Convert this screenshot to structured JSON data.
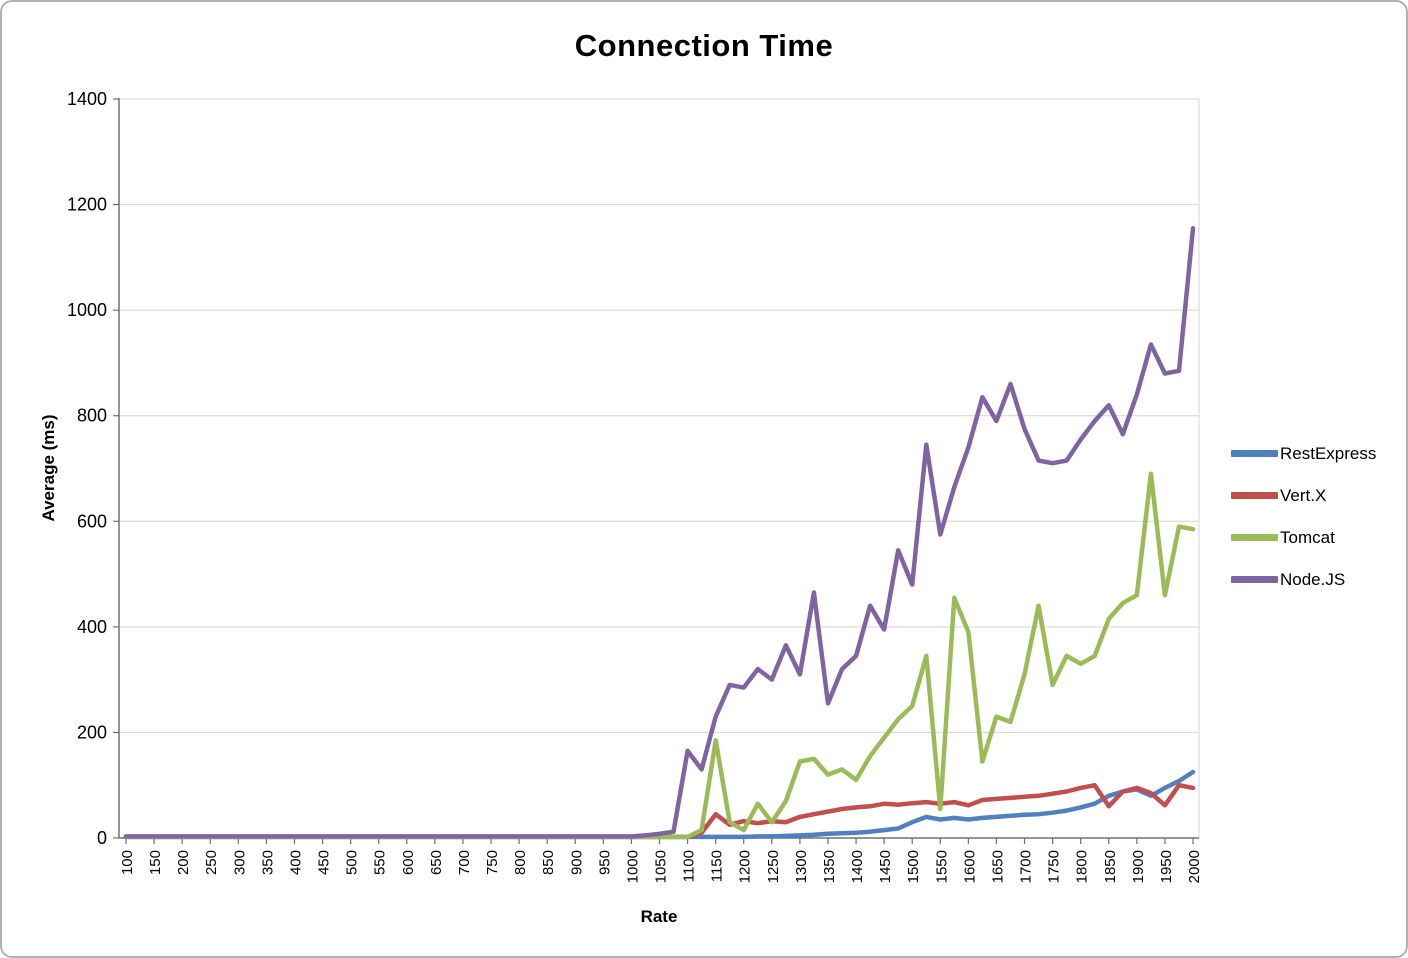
{
  "chart_data": {
    "type": "line",
    "title": "Connection Time",
    "xlabel": "Rate",
    "ylabel": "Average (ms)",
    "x_start": 100,
    "x_step": 25,
    "x_end": 2000,
    "x_tick_step": 50,
    "x_tick_labels": [
      "100",
      "150",
      "200",
      "250",
      "300",
      "350",
      "400",
      "450",
      "500",
      "550",
      "600",
      "650",
      "700",
      "750",
      "800",
      "850",
      "900",
      "950",
      "1000",
      "1050",
      "1100",
      "1150",
      "1200",
      "1250",
      "1300",
      "1350",
      "1400",
      "1450",
      "1500",
      "1550",
      "1600",
      "1650",
      "1700",
      "1750",
      "1800",
      "1850",
      "1900",
      "1950",
      "2000"
    ],
    "y_ticks": [
      0,
      200,
      400,
      600,
      800,
      1000,
      1200,
      1400
    ],
    "ylim": [
      0,
      1400
    ],
    "grid": true,
    "legend_position": "right",
    "colors": {
      "grid": "#d4d4d4",
      "axis": "#707070",
      "text": "#000000",
      "background": "#ffffff",
      "border": "#b2b2b2"
    },
    "series": [
      {
        "name": "RestExpress",
        "color": "#4F81BD",
        "values": [
          2,
          2,
          2,
          2,
          2,
          2,
          2,
          2,
          2,
          2,
          2,
          2,
          2,
          2,
          2,
          2,
          2,
          2,
          2,
          2,
          2,
          2,
          2,
          2,
          2,
          2,
          2,
          2,
          2,
          2,
          2,
          2,
          2,
          2,
          2,
          2,
          2,
          2,
          2,
          2,
          2,
          2,
          2,
          2,
          2,
          3,
          3,
          4,
          5,
          6,
          8,
          9,
          10,
          12,
          15,
          18,
          30,
          40,
          35,
          38,
          35,
          38,
          40,
          42,
          44,
          45,
          48,
          52,
          58,
          65,
          80,
          88,
          92,
          80,
          95,
          108,
          125
        ]
      },
      {
        "name": "Vert.X",
        "color": "#C0504D",
        "values": [
          2,
          2,
          2,
          2,
          2,
          2,
          2,
          2,
          2,
          2,
          2,
          2,
          2,
          2,
          2,
          2,
          2,
          2,
          2,
          2,
          2,
          2,
          2,
          2,
          2,
          2,
          2,
          2,
          2,
          2,
          2,
          2,
          2,
          2,
          2,
          2,
          2,
          2,
          2,
          2,
          2,
          10,
          45,
          25,
          32,
          28,
          32,
          30,
          40,
          45,
          50,
          55,
          58,
          60,
          65,
          63,
          66,
          68,
          65,
          68,
          62,
          72,
          74,
          76,
          78,
          80,
          84,
          88,
          95,
          100,
          60,
          88,
          95,
          85,
          62,
          100,
          95
        ]
      },
      {
        "name": "Tomcat",
        "color": "#9BBB59",
        "values": [
          2,
          2,
          2,
          2,
          2,
          2,
          2,
          2,
          2,
          2,
          2,
          2,
          2,
          2,
          2,
          2,
          2,
          2,
          2,
          2,
          2,
          2,
          2,
          2,
          2,
          2,
          2,
          2,
          2,
          2,
          2,
          2,
          2,
          2,
          2,
          2,
          2,
          2,
          2,
          2,
          2,
          15,
          185,
          30,
          15,
          65,
          30,
          70,
          145,
          150,
          120,
          130,
          110,
          155,
          190,
          225,
          250,
          345,
          55,
          455,
          390,
          145,
          230,
          220,
          310,
          440,
          290,
          345,
          330,
          345,
          415,
          445,
          460,
          690,
          460,
          590,
          585
        ]
      },
      {
        "name": "Node.JS",
        "color": "#8064A2",
        "values": [
          3,
          3,
          3,
          3,
          3,
          3,
          3,
          3,
          3,
          3,
          3,
          3,
          3,
          3,
          3,
          3,
          3,
          3,
          3,
          3,
          3,
          3,
          3,
          3,
          3,
          3,
          3,
          3,
          3,
          3,
          3,
          3,
          3,
          3,
          3,
          3,
          3,
          5,
          8,
          12,
          165,
          130,
          230,
          290,
          285,
          320,
          300,
          365,
          310,
          465,
          255,
          320,
          345,
          440,
          395,
          545,
          480,
          745,
          575,
          665,
          740,
          835,
          790,
          860,
          775,
          715,
          710,
          715,
          755,
          790,
          820,
          765,
          840,
          935,
          880,
          885,
          1155
        ]
      }
    ]
  }
}
